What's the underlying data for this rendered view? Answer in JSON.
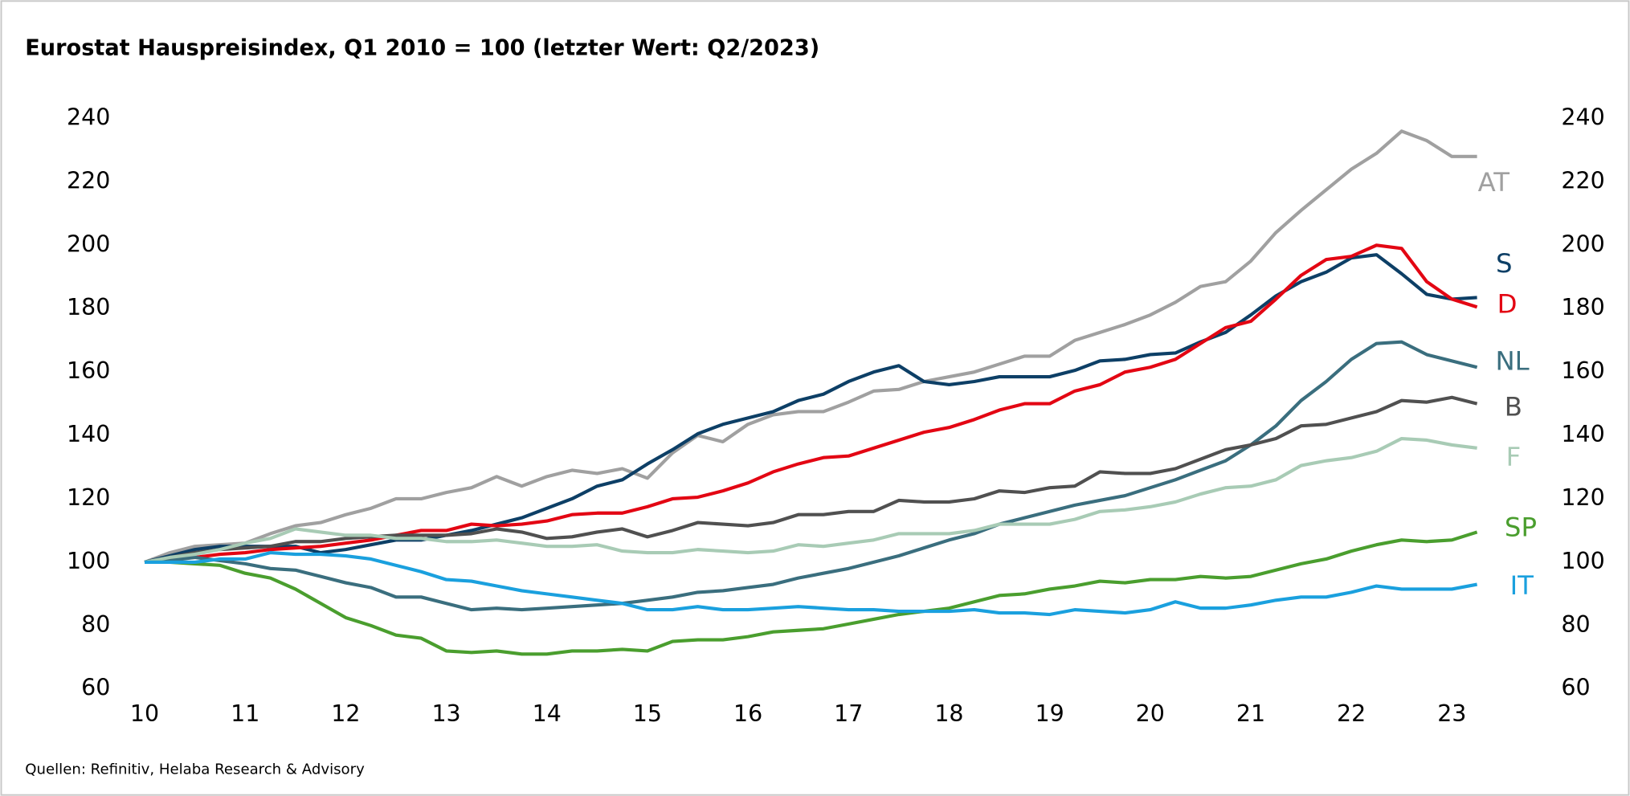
{
  "chart_data": {
    "type": "line",
    "title": "Eurostat Hauspreisindex, Q1 2010 = 100 (letzter Wert: Q2/2023)",
    "source": "Quellen: Refinitiv, Helaba Research & Advisory",
    "x": [
      10,
      10.25,
      10.5,
      10.75,
      11,
      11.25,
      11.5,
      11.75,
      12,
      12.25,
      12.5,
      12.75,
      13,
      13.25,
      13.5,
      13.75,
      14,
      14.25,
      14.5,
      14.75,
      15,
      15.25,
      15.5,
      15.75,
      16,
      16.25,
      16.5,
      16.75,
      17,
      17.25,
      17.5,
      17.75,
      18,
      18.25,
      18.5,
      18.75,
      19,
      19.25,
      19.5,
      19.75,
      20,
      20.25,
      20.5,
      20.75,
      21,
      21.25,
      21.5,
      21.75,
      22,
      22.25,
      22.5,
      22.75,
      23,
      23.25
    ],
    "xlim": [
      10,
      23.25
    ],
    "xticks": [
      10,
      11,
      12,
      13,
      14,
      15,
      16,
      17,
      18,
      19,
      20,
      21,
      22,
      23
    ],
    "ylim": [
      60,
      240
    ],
    "yticks": [
      60,
      80,
      100,
      120,
      140,
      160,
      180,
      200,
      220,
      240
    ],
    "grid": false,
    "series": [
      {
        "name": "AT",
        "color": "#a0a0a0",
        "values": [
          100,
          103,
          105,
          105.5,
          106,
          109,
          111.5,
          112.5,
          115,
          117,
          120,
          120,
          122,
          123.5,
          127,
          124,
          127,
          129,
          128,
          129.5,
          126.5,
          134.5,
          140,
          138,
          143.5,
          146.5,
          147.5,
          147.5,
          150.5,
          154,
          154.5,
          157,
          158.5,
          160,
          162.5,
          165,
          165,
          170,
          172.5,
          175,
          178,
          182,
          187,
          188.5,
          195,
          204,
          211,
          217.5,
          224,
          229,
          236,
          233,
          228,
          228
        ]
      },
      {
        "name": "S",
        "color": "#0d3f66",
        "values": [
          100,
          102,
          104,
          105,
          105,
          105,
          105,
          103,
          104,
          105.5,
          107,
          107,
          108.5,
          110,
          112,
          114,
          117,
          120,
          124,
          126,
          131,
          135.5,
          140.5,
          143.5,
          145.5,
          147.5,
          151,
          153,
          157,
          160,
          162,
          157,
          156,
          157,
          158.5,
          158.5,
          158.5,
          160.5,
          163.5,
          164,
          165.5,
          166,
          169.5,
          172.5,
          178,
          184,
          188.5,
          191.5,
          196,
          197,
          191,
          184.5,
          183,
          183.5
        ]
      },
      {
        "name": "D",
        "color": "#e30613",
        "values": [
          100,
          101,
          101.5,
          102.5,
          103,
          104,
          104.5,
          105,
          106,
          107,
          108.5,
          110,
          110,
          112,
          111.5,
          112,
          113,
          115,
          115.5,
          115.5,
          117.5,
          120,
          120.5,
          122.5,
          125,
          128.5,
          131,
          133,
          133.5,
          136,
          138.5,
          141,
          142.5,
          145,
          148,
          150,
          150,
          154,
          156,
          160,
          161.5,
          164,
          169,
          174,
          176,
          183,
          190.5,
          195.5,
          196.5,
          200,
          199,
          188.5,
          183,
          180.5
        ]
      },
      {
        "name": "NL",
        "color": "#3a6e7e",
        "values": [
          100,
          100.5,
          101.5,
          100.5,
          99.5,
          98,
          97.5,
          95.5,
          93.5,
          92,
          89,
          89,
          87,
          85,
          85.5,
          85,
          85.5,
          86,
          86.5,
          87,
          88,
          89,
          90.5,
          91,
          92,
          93,
          95,
          96.5,
          98,
          100,
          102,
          104.5,
          107,
          109,
          112,
          114,
          116,
          118,
          119.5,
          121,
          123.5,
          126,
          129,
          132,
          137,
          143,
          151,
          157,
          164,
          169,
          169.5,
          165.5,
          163.5,
          161.5
        ]
      },
      {
        "name": "B",
        "color": "#505050",
        "values": [
          100,
          101.5,
          103,
          104,
          104.5,
          105,
          106.5,
          106.5,
          107.5,
          108,
          108.5,
          108.5,
          108.5,
          109,
          110.5,
          109.5,
          107.5,
          108,
          109.5,
          110.5,
          108,
          110,
          112.5,
          112,
          111.5,
          112.5,
          115,
          115,
          116,
          116,
          119.5,
          119,
          119,
          120,
          122.5,
          122,
          123.5,
          124,
          128.5,
          128,
          128,
          129.5,
          132.5,
          135.5,
          137,
          139,
          143,
          143.5,
          145.5,
          147.5,
          151,
          150.5,
          152,
          150
        ]
      },
      {
        "name": "F",
        "color": "#a8cbb5",
        "values": [
          100,
          101.5,
          102.5,
          104,
          106,
          107.5,
          110.5,
          109.5,
          108.5,
          108.5,
          107.5,
          107.5,
          106.5,
          106.5,
          107,
          106,
          105,
          105,
          105.5,
          103.5,
          103,
          103,
          104,
          103.5,
          103,
          103.5,
          105.5,
          105,
          106,
          107,
          109,
          109,
          109,
          110,
          112,
          112,
          112,
          113.5,
          116,
          116.5,
          117.5,
          119,
          121.5,
          123.5,
          124,
          126,
          130.5,
          132,
          133,
          135,
          139,
          138.5,
          137,
          136
        ]
      },
      {
        "name": "SP",
        "color": "#4a9e2e",
        "values": [
          100,
          100,
          99.5,
          99,
          96.5,
          95,
          91.5,
          87,
          82.5,
          80,
          77,
          76,
          72,
          71.5,
          72,
          71,
          71,
          72,
          72,
          72.5,
          72,
          75,
          75.5,
          75.5,
          76.5,
          78,
          78.5,
          79,
          80.5,
          82,
          83.5,
          84.5,
          85.5,
          87.5,
          89.5,
          90,
          91.5,
          92.5,
          94,
          93.5,
          94.5,
          94.5,
          95.5,
          95,
          95.5,
          97.5,
          99.5,
          101,
          103.5,
          105.5,
          107,
          106.5,
          107,
          109.5
        ]
      },
      {
        "name": "IT",
        "color": "#1aa0de",
        "values": [
          100,
          100,
          100,
          101,
          101,
          103,
          102.5,
          102.5,
          102,
          101,
          99,
          97,
          94.5,
          94,
          92.5,
          91,
          90,
          89,
          88,
          87,
          85,
          85,
          86,
          85,
          85,
          85.5,
          86,
          85.5,
          85,
          85,
          84.5,
          84.5,
          84.5,
          85,
          84,
          84,
          83.5,
          85,
          84.5,
          84,
          85,
          87.5,
          85.5,
          85.5,
          86.5,
          88,
          89,
          89,
          90.5,
          92.5,
          91.5,
          91.5,
          91.5,
          93
        ]
      }
    ]
  }
}
